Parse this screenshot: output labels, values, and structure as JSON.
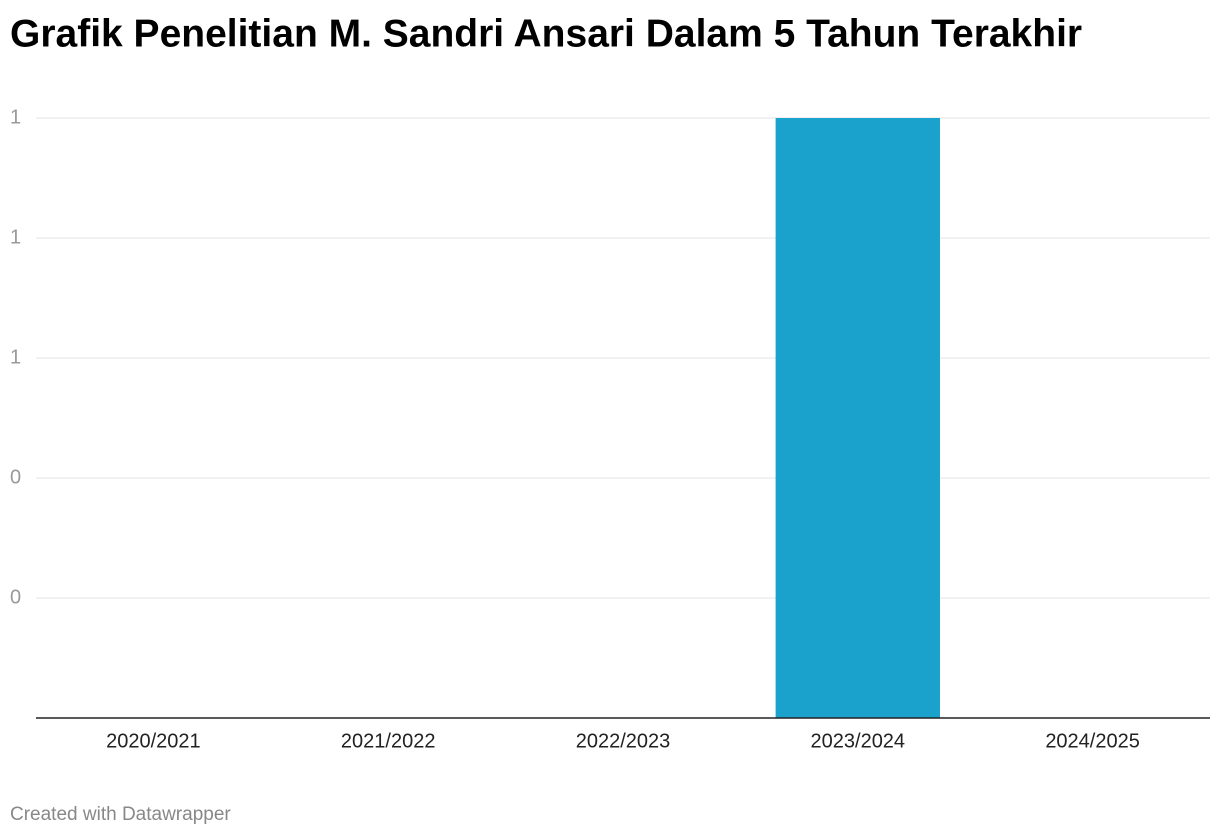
{
  "chart_data": {
    "type": "bar",
    "title": "Grafik Penelitian M. Sandri Ansari Dalam 5 Tahun Terakhir",
    "categories": [
      "2020/2021",
      "2021/2022",
      "2022/2023",
      "2023/2024",
      "2024/2025"
    ],
    "values": [
      0,
      0,
      0,
      1,
      0
    ],
    "color": "#1aa1cc",
    "ylim": [
      0,
      1
    ],
    "yticks": [
      {
        "value": 0.2,
        "label": "0"
      },
      {
        "value": 0.4,
        "label": "0"
      },
      {
        "value": 0.6,
        "label": "1"
      },
      {
        "value": 0.8,
        "label": "1"
      },
      1
    ],
    "grid": true,
    "credit": "Created with Datawrapper"
  }
}
